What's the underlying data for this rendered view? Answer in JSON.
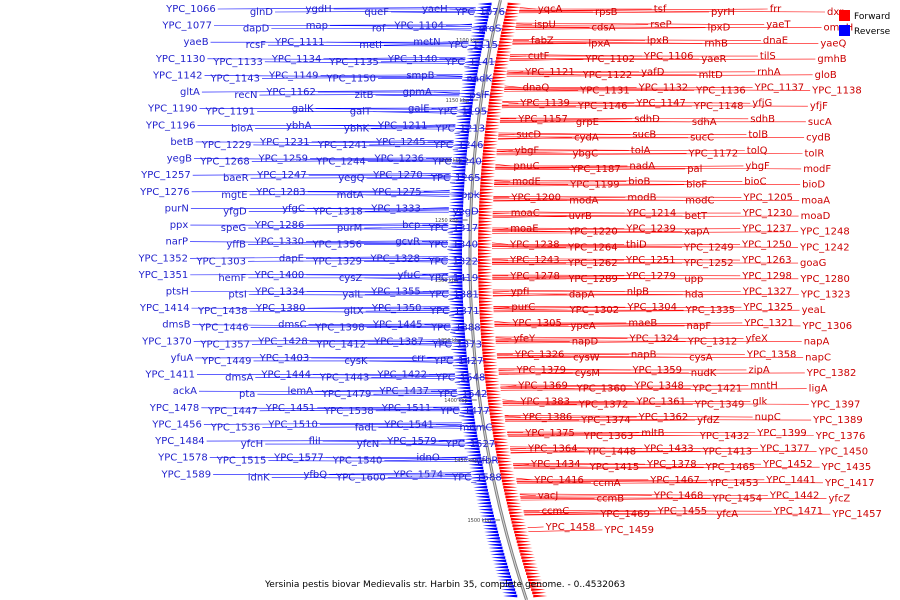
{
  "title": "Yersinia pestis biovar Medievalis str. Harbin 35, complete genome. - 0..4532063",
  "legend": [
    {
      "label": "Forward",
      "color": "#ff0000"
    },
    {
      "label": "Reverse",
      "color": "#0000ff"
    }
  ],
  "ticks": [
    "1100 kbp",
    "1150 kbp",
    "1200 kbp",
    "1250 kbp",
    "1300 kbp",
    "1350 kbp",
    "1400 kbp",
    "1450 kbp",
    "1500 kbp"
  ],
  "reverse_genes": [
    "YPC_1066",
    "glnD",
    "ygdH",
    "queF",
    "yaeH",
    "YPC_1076",
    "YPC_1077",
    "dapD",
    "map",
    "rof",
    "YPC_1104",
    "proS",
    "yaeB",
    "rcsF",
    "YPC_1111",
    "metI",
    "metN",
    "YPC_1115",
    "YPC_1130",
    "YPC_1133",
    "YPC_1134",
    "YPC_1135",
    "YPC_1140",
    "YPC_1141",
    "YPC_1142",
    "YPC_1143",
    "YPC_1149",
    "YPC_1150",
    "smpB",
    "nadK",
    "gltA",
    "recN",
    "YPC_1162",
    "zitB",
    "gpmA",
    "psiF",
    "YPC_1190",
    "YPC_1191",
    "galK",
    "galT",
    "galE",
    "YPC_1195",
    "YPC_1196",
    "bioA",
    "ybhA",
    "ybhK",
    "YPC_1211",
    "YPC_1213",
    "betB",
    "YPC_1229",
    "YPC_1231",
    "YPC_1241",
    "YPC_1245",
    "YPC_1246",
    "yegB",
    "YPC_1268",
    "YPC_1259",
    "YPC_1244",
    "YPC_1236",
    "YPC_1240",
    "YPC_1257",
    "baeR",
    "YPC_1247",
    "yegQ",
    "YPC_1270",
    "YPC_1265",
    "YPC_1276",
    "mgtE",
    "YPC_1283",
    "mdtA",
    "YPC_1275",
    "ppk",
    "purN",
    "yfgD",
    "yfgC",
    "YPC_1318",
    "YPC_1333",
    "yegD",
    "ppx",
    "speG",
    "YPC_1286",
    "purM",
    "bcp",
    "YPC_1317",
    "narP",
    "yffB",
    "YPC_1330",
    "YPC_1356",
    "gcvR",
    "YPC_1340",
    "YPC_1352",
    "YPC_1303",
    "dapE",
    "YPC_1329",
    "YPC_1328",
    "YPC_1322",
    "YPC_1351",
    "hemF",
    "YPC_1400",
    "cysZ",
    "yfuC",
    "YPC_1419",
    "ptsH",
    "ptsI",
    "YPC_1334",
    "yaiL",
    "YPC_1355",
    "YPC_1381",
    "YPC_1414",
    "YPC_1438",
    "YPC_1380",
    "gltX",
    "YPC_1350",
    "YPC_1371",
    "dmsB",
    "YPC_1446",
    "dmsC",
    "YPC_1398",
    "YPC_1445",
    "YPC_1388",
    "YPC_1370",
    "YPC_1357",
    "YPC_1428",
    "YPC_1412",
    "YPC_1387",
    "YPC_1373",
    "yfuA",
    "YPC_1449",
    "YPC_1403",
    "cysK",
    "crr",
    "YPC_1427",
    "YPC_1411",
    "dmsA",
    "YPC_1444",
    "YPC_1443",
    "YPC_1422",
    "YPC_1548",
    "ackA",
    "pta",
    "lemA",
    "YPC_1479",
    "YPC_1437",
    "YPC_1542",
    "YPC_1478",
    "YPC_1447",
    "YPC_1451",
    "YPC_1538",
    "YPC_1511",
    "YPC_1477",
    "YPC_1456",
    "YPC_1536",
    "YPC_1510",
    "fadL",
    "YPC_1541",
    "mnmC",
    "YPC_1484",
    "yfcH",
    "fliI",
    "yfcN",
    "YPC_1579",
    "YPC_1527",
    "YPC_1578",
    "YPC_1515",
    "YPC_1577",
    "YPC_1540",
    "idnO",
    "yfbR",
    "YPC_1589",
    "idnK",
    "yfbQ",
    "YPC_1600",
    "YPC_1574",
    "YPC_1588"
  ],
  "forward_genes": [
    "yqcA",
    "rpsB",
    "tsf",
    "pyrH",
    "frr",
    "dxr",
    "ispU",
    "cdsA",
    "rseP",
    "lpxD",
    "yaeT",
    "ompH",
    "fabZ",
    "lpxA",
    "lpxB",
    "rnhB",
    "dnaE",
    "yaeQ",
    "cutF",
    "YPC_1102",
    "YPC_1106",
    "yaeR",
    "tilS",
    "gmhB",
    "YPC_1121",
    "YPC_1122",
    "yafD",
    "mltD",
    "rnhA",
    "gloB",
    "dnaQ",
    "YPC_1131",
    "YPC_1132",
    "YPC_1136",
    "YPC_1137",
    "YPC_1138",
    "YPC_1139",
    "YPC_1146",
    "YPC_1147",
    "YPC_1148",
    "yfjG",
    "yfjF",
    "YPC_1157",
    "grpE",
    "sdhD",
    "sdhA",
    "sdhB",
    "sucA",
    "sucD",
    "cydA",
    "sucB",
    "sucC",
    "tolB",
    "cydB",
    "ybgF",
    "ybgC",
    "tolA",
    "YPC_1172",
    "tolQ",
    "tolR",
    "pnuC",
    "YPC_1187",
    "nadA",
    "pal",
    "ybgF",
    "modF",
    "modE",
    "YPC_1199",
    "bioB",
    "bioF",
    "bioC",
    "bioD",
    "YPC_1200",
    "modA",
    "modB",
    "modC",
    "YPC_1205",
    "moaA",
    "moaC",
    "uvrB",
    "YPC_1214",
    "betT",
    "YPC_1230",
    "moaD",
    "moaE",
    "YPC_1220",
    "YPC_1239",
    "xapA",
    "YPC_1237",
    "YPC_1248",
    "YPC_1238",
    "YPC_1264",
    "thiD",
    "YPC_1249",
    "YPC_1250",
    "YPC_1242",
    "YPC_1243",
    "YPC_1262",
    "YPC_1251",
    "YPC_1252",
    "YPC_1263",
    "goaG",
    "YPC_1278",
    "YPC_1289",
    "YPC_1279",
    "upp",
    "YPC_1298",
    "YPC_1280",
    "ypfI",
    "dapA",
    "nlpB",
    "hda",
    "YPC_1327",
    "YPC_1323",
    "purC",
    "YPC_1302",
    "YPC_1304",
    "YPC_1335",
    "YPC_1325",
    "yeaL",
    "YPC_1305",
    "ypeA",
    "maeB",
    "napF",
    "YPC_1321",
    "YPC_1306",
    "yfeY",
    "napD",
    "YPC_1324",
    "YPC_1312",
    "yfeX",
    "napA",
    "YPC_1326",
    "cysW",
    "napB",
    "cysA",
    "YPC_1358",
    "napC",
    "YPC_1379",
    "cysM",
    "YPC_1359",
    "nudK",
    "zipA",
    "YPC_1382",
    "YPC_1369",
    "YPC_1360",
    "YPC_1348",
    "YPC_1421",
    "mntH",
    "ligA",
    "YPC_1383",
    "YPC_1372",
    "YPC_1361",
    "YPC_1349",
    "glk",
    "YPC_1397",
    "YPC_1386",
    "YPC_1374",
    "YPC_1362",
    "yfdZ",
    "nupC",
    "YPC_1389",
    "YPC_1375",
    "YPC_1363",
    "mltB",
    "YPC_1432",
    "YPC_1399",
    "YPC_1376",
    "YPC_1364",
    "YPC_1448",
    "YPC_1433",
    "YPC_1413",
    "YPC_1377",
    "YPC_1450",
    "YPC_1434",
    "YPC_1415",
    "YPC_1378",
    "YPC_1465",
    "YPC_1452",
    "YPC_1435",
    "YPC_1416",
    "ccmA",
    "YPC_1467",
    "YPC_1453",
    "YPC_1441",
    "YPC_1417",
    "vacJ",
    "ccmB",
    "YPC_1468",
    "YPC_1454",
    "YPC_1442",
    "yfcZ",
    "ccmC",
    "YPC_1469",
    "YPC_1455",
    "yfcA",
    "YPC_1471",
    "YPC_1457",
    "YPC_1458",
    "YPC_1459"
  ]
}
